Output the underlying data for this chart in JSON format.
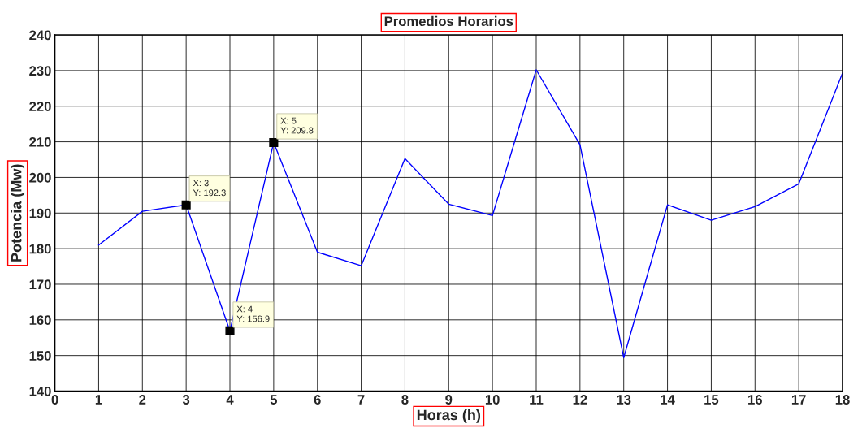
{
  "chart_data": {
    "type": "line",
    "title": "Promedios Horarios",
    "xlabel": "Horas (h)",
    "ylabel": "Potencia (Mw)",
    "x": [
      1,
      2,
      3,
      4,
      5,
      6,
      7,
      8,
      9,
      10,
      11,
      12,
      13,
      14,
      15,
      16,
      17,
      18
    ],
    "series": [
      {
        "color": "#0000ff",
        "values": [
          181,
          190.5,
          192.3,
          156.9,
          209.8,
          179,
          175.2,
          205.3,
          192.5,
          189.3,
          230.2,
          209.2,
          149.4,
          192.3,
          188,
          191.8,
          198.2,
          229.3
        ]
      }
    ],
    "xlim": [
      0,
      18
    ],
    "xticks": [
      0,
      1,
      2,
      3,
      4,
      5,
      6,
      7,
      8,
      9,
      10,
      11,
      12,
      13,
      14,
      15,
      16,
      17,
      18
    ],
    "ylim": [
      140,
      240
    ],
    "yticks": [
      140,
      150,
      160,
      170,
      180,
      190,
      200,
      210,
      220,
      230,
      240
    ],
    "grid": true,
    "marker": "none",
    "line_style": "solid",
    "annotations": [
      {
        "text": "X: 3\nY: 192.3",
        "x": 3,
        "y": 192.3
      },
      {
        "text": "X: 4\nY: 156.9",
        "x": 4,
        "y": 156.9
      },
      {
        "text": "X: 5\nY: 209.8",
        "x": 5,
        "y": 209.8
      }
    ]
  }
}
